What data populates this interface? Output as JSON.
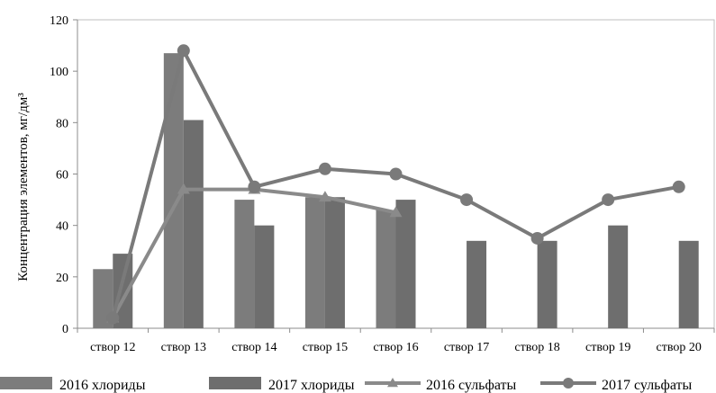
{
  "chart_data": {
    "type": "bar",
    "categories": [
      "створ 12",
      "створ 13",
      "створ 14",
      "створ 15",
      "створ 16",
      "створ 17",
      "створ 18",
      "створ 19",
      "створ 20"
    ],
    "series": [
      {
        "name": "2016 хлориды",
        "kind": "bar",
        "values": [
          23,
          107,
          50,
          51,
          46,
          null,
          null,
          null,
          null
        ]
      },
      {
        "name": "2017 хлориды",
        "kind": "bar",
        "values": [
          29,
          81,
          40,
          51,
          50,
          34,
          34,
          40,
          34
        ]
      },
      {
        "name": "2016 сульфаты",
        "kind": "line",
        "marker": "triangle",
        "values": [
          4,
          54,
          54,
          51,
          45,
          null,
          null,
          null,
          null
        ]
      },
      {
        "name": "2017 сульфаты",
        "kind": "line",
        "marker": "circle",
        "values": [
          4,
          108,
          55,
          62,
          60,
          50,
          35,
          50,
          55
        ]
      }
    ],
    "ylabel": "Концентрация элементов, мг/дм³",
    "ylim": [
      0,
      120
    ],
    "yticks": [
      0,
      20,
      40,
      60,
      80,
      100,
      120
    ],
    "grid": false,
    "legend_position": "bottom",
    "colors": {
      "bar_2016": "#7c7c7c",
      "bar_2017": "#6e6e6e",
      "line_2016": "#8a8a8a",
      "line_2017": "#7a7a7a"
    }
  }
}
